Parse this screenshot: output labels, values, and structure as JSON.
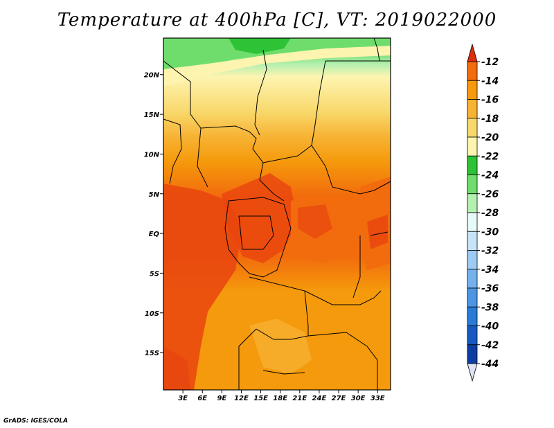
{
  "title": "Temperature at 400hPa [C], VT: 2019022000",
  "credit": "GrADS: IGES/COLA",
  "map": {
    "lat_labels": [
      "20N",
      "15N",
      "10N",
      "5N",
      "EQ",
      "5S",
      "10S",
      "15S"
    ],
    "lon_labels": [
      "3E",
      "6E",
      "9E",
      "12E",
      "15E",
      "18E",
      "21E",
      "24E",
      "27E",
      "30E",
      "33E"
    ],
    "lat_values": [
      20,
      15,
      10,
      5,
      0,
      -5,
      -10,
      -15
    ],
    "lon_values": [
      3,
      6,
      9,
      12,
      15,
      18,
      21,
      24,
      27,
      30,
      33
    ],
    "lat_range": [
      -19.7,
      24.6
    ],
    "lon_range": [
      0.0,
      35.0
    ],
    "variable": "Temperature at 400hPa",
    "units": "C",
    "valid_time": "2019022000"
  },
  "colorbar": {
    "levels": [
      "-12",
      "-14",
      "-16",
      "-18",
      "-20",
      "-22",
      "-24",
      "-26",
      "-28",
      "-30",
      "-32",
      "-34",
      "-36",
      "-38",
      "-40",
      "-42",
      "-44"
    ],
    "colors": [
      "#e8450f",
      "#f26b0d",
      "#f59a0c",
      "#f7b334",
      "#f8d86b",
      "#fdf4b0",
      "#2ec237",
      "#6fdd6c",
      "#b5f0b1",
      "#e6fbf7",
      "#c6e3f9",
      "#9ecbf3",
      "#75b1ed",
      "#4b96e4",
      "#2a7ad8",
      "#1659c1",
      "#0e3da2",
      "#0a1e6f"
    ],
    "over_color": "#e02d0a",
    "under_color": "#dfe3f7"
  }
}
